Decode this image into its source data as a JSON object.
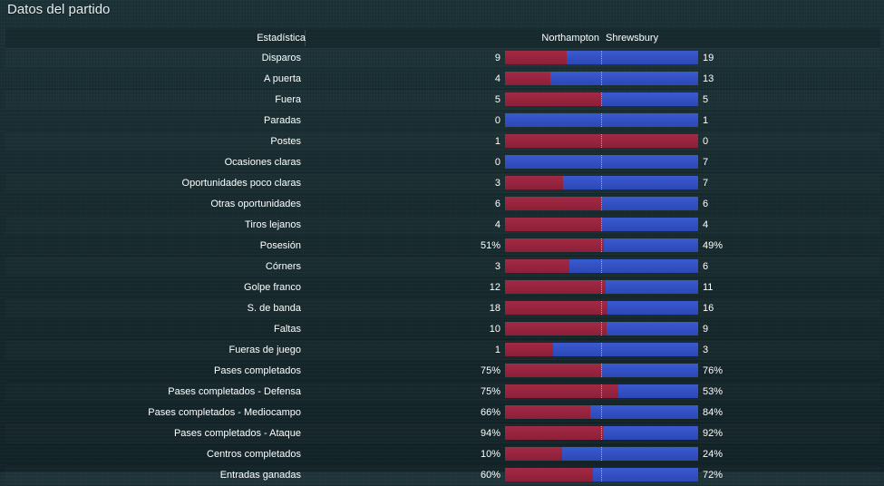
{
  "page": {
    "title": "Datos del partido"
  },
  "header": {
    "stat_label": "Estadística",
    "home_team": "Northampton",
    "away_team": "Shrewsbury"
  },
  "colors": {
    "home_bar": "#8d1f38",
    "away_bar": "#2c48b5"
  },
  "stats": [
    {
      "label": "Disparos",
      "home": "9",
      "away": "19",
      "home_share": 0.321
    },
    {
      "label": "A puerta",
      "home": "4",
      "away": "13",
      "home_share": 0.235
    },
    {
      "label": "Fuera",
      "home": "5",
      "away": "5",
      "home_share": 0.5
    },
    {
      "label": "Paradas",
      "home": "0",
      "away": "1",
      "home_share": 0.0
    },
    {
      "label": "Postes",
      "home": "1",
      "away": "0",
      "home_share": 1.0
    },
    {
      "label": "Ocasiones claras",
      "home": "0",
      "away": "7",
      "home_share": 0.0
    },
    {
      "label": "Oportunidades poco claras",
      "home": "3",
      "away": "7",
      "home_share": 0.3
    },
    {
      "label": "Otras oportunidades",
      "home": "6",
      "away": "6",
      "home_share": 0.5
    },
    {
      "label": "Tiros lejanos",
      "home": "4",
      "away": "4",
      "home_share": 0.5
    },
    {
      "label": "Posesión",
      "home": "51%",
      "away": "49%",
      "home_share": 0.51
    },
    {
      "label": "Córners",
      "home": "3",
      "away": "6",
      "home_share": 0.333
    },
    {
      "label": "Golpe franco",
      "home": "12",
      "away": "11",
      "home_share": 0.522
    },
    {
      "label": "S. de banda",
      "home": "18",
      "away": "16",
      "home_share": 0.529
    },
    {
      "label": "Faltas",
      "home": "10",
      "away": "9",
      "home_share": 0.526
    },
    {
      "label": "Fueras de juego",
      "home": "1",
      "away": "3",
      "home_share": 0.25
    },
    {
      "label": "Pases completados",
      "home": "75%",
      "away": "76%",
      "home_share": 0.497
    },
    {
      "label": "Pases completados - Defensa",
      "home": "75%",
      "away": "53%",
      "home_share": 0.586
    },
    {
      "label": "Pases completados - Mediocampo",
      "home": "66%",
      "away": "84%",
      "home_share": 0.44
    },
    {
      "label": "Pases completados - Ataque",
      "home": "94%",
      "away": "92%",
      "home_share": 0.505
    },
    {
      "label": "Centros completados",
      "home": "10%",
      "away": "24%",
      "home_share": 0.294
    },
    {
      "label": "Entradas ganadas",
      "home": "60%",
      "away": "72%",
      "home_share": 0.455
    }
  ]
}
